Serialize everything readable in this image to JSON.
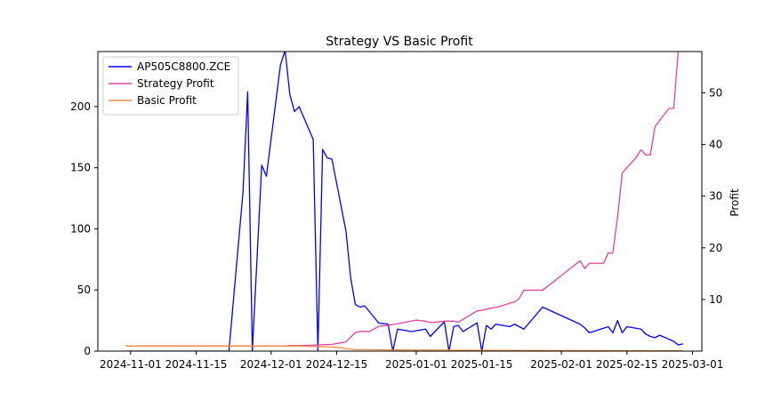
{
  "chart_data": {
    "type": "line",
    "title": "Strategy VS Basic Profit",
    "xlabel": "",
    "ylabel_left": "",
    "ylabel_right": "Profit",
    "x_axis": {
      "type": "date",
      "range": [
        "2024-10-25",
        "2025-03-03"
      ],
      "ticks": [
        "2024-11-01",
        "2024-11-15",
        "2024-12-01",
        "2024-12-15",
        "2025-01-01",
        "2025-01-15",
        "2025-02-01",
        "2025-02-15",
        "2025-03-01"
      ]
    },
    "y_left": {
      "range": [
        0,
        245
      ],
      "ticks": [
        0,
        50,
        100,
        150,
        200
      ]
    },
    "y_right": {
      "range": [
        0,
        58
      ],
      "ticks": [
        10,
        20,
        30,
        40,
        50
      ]
    },
    "grid": false,
    "legend": {
      "placement": "top-left"
    },
    "series": [
      {
        "name": "AP505C8800.ZCE",
        "axis": "left",
        "color": "#0000ff",
        "points": [
          [
            "2024-10-31",
            0
          ],
          [
            "2024-11-22",
            0
          ],
          [
            "2024-11-25",
            130
          ],
          [
            "2024-11-26",
            212
          ],
          [
            "2024-11-27",
            0
          ],
          [
            "2024-11-29",
            152
          ],
          [
            "2024-11-30",
            143
          ],
          [
            "2024-12-03",
            234
          ],
          [
            "2024-12-04",
            246
          ],
          [
            "2024-12-05",
            210
          ],
          [
            "2024-12-06",
            196
          ],
          [
            "2024-12-07",
            200
          ],
          [
            "2024-12-10",
            173
          ],
          [
            "2024-12-11",
            0
          ],
          [
            "2024-12-12",
            165
          ],
          [
            "2024-12-13",
            158
          ],
          [
            "2024-12-14",
            157
          ],
          [
            "2024-12-17",
            98
          ],
          [
            "2024-12-18",
            60
          ],
          [
            "2024-12-19",
            38
          ],
          [
            "2024-12-20",
            36
          ],
          [
            "2024-12-21",
            37
          ],
          [
            "2024-12-24",
            23
          ],
          [
            "2024-12-26",
            22
          ],
          [
            "2024-12-27",
            0
          ],
          [
            "2024-12-28",
            18
          ],
          [
            "2024-12-31",
            16
          ],
          [
            "2025-01-03",
            18
          ],
          [
            "2025-01-04",
            12
          ],
          [
            "2025-01-07",
            24
          ],
          [
            "2025-01-08",
            0
          ],
          [
            "2025-01-09",
            20
          ],
          [
            "2025-01-10",
            21
          ],
          [
            "2025-01-11",
            16
          ],
          [
            "2025-01-14",
            23
          ],
          [
            "2025-01-15",
            0
          ],
          [
            "2025-01-16",
            21
          ],
          [
            "2025-01-17",
            18
          ],
          [
            "2025-01-18",
            22
          ],
          [
            "2025-01-21",
            20
          ],
          [
            "2025-01-22",
            22
          ],
          [
            "2025-01-24",
            18
          ],
          [
            "2025-01-28",
            36
          ],
          [
            "2025-02-05",
            22
          ],
          [
            "2025-02-06",
            19
          ],
          [
            "2025-02-07",
            15
          ],
          [
            "2025-02-11",
            20
          ],
          [
            "2025-02-12",
            15
          ],
          [
            "2025-02-13",
            25
          ],
          [
            "2025-02-14",
            15
          ],
          [
            "2025-02-15",
            20
          ],
          [
            "2025-02-18",
            18
          ],
          [
            "2025-02-19",
            14
          ],
          [
            "2025-02-20",
            12
          ],
          [
            "2025-02-21",
            11
          ],
          [
            "2025-02-22",
            13
          ],
          [
            "2025-02-25",
            8
          ],
          [
            "2025-02-26",
            5
          ],
          [
            "2025-02-27",
            6
          ]
        ]
      },
      {
        "name": "Strategy Profit",
        "axis": "right",
        "color": "#e8409f",
        "points": [
          [
            "2024-10-31",
            1.0
          ],
          [
            "2024-11-28",
            1.0
          ],
          [
            "2024-12-04",
            1.0
          ],
          [
            "2024-12-05",
            1.1
          ],
          [
            "2024-12-08",
            1.1
          ],
          [
            "2024-12-11",
            1.2
          ],
          [
            "2024-12-14",
            1.3
          ],
          [
            "2024-12-17",
            1.8
          ],
          [
            "2024-12-19",
            3.6
          ],
          [
            "2024-12-20",
            3.8
          ],
          [
            "2024-12-22",
            3.8
          ],
          [
            "2024-12-24",
            4.8
          ],
          [
            "2024-12-26",
            5.0
          ],
          [
            "2024-12-28",
            5.3
          ],
          [
            "2025-01-01",
            6.0
          ],
          [
            "2025-01-03",
            5.8
          ],
          [
            "2025-01-04",
            5.5
          ],
          [
            "2025-01-07",
            5.8
          ],
          [
            "2025-01-09",
            5.8
          ],
          [
            "2025-01-10",
            5.6
          ],
          [
            "2025-01-14",
            7.8
          ],
          [
            "2025-01-15",
            7.9
          ],
          [
            "2025-01-16",
            8.1
          ],
          [
            "2025-01-18",
            8.5
          ],
          [
            "2025-01-19",
            8.7
          ],
          [
            "2025-01-20",
            9.0
          ],
          [
            "2025-01-21",
            9.3
          ],
          [
            "2025-01-22",
            9.5
          ],
          [
            "2025-01-23",
            10.2
          ],
          [
            "2025-01-24",
            11.8
          ],
          [
            "2025-01-28",
            11.8
          ],
          [
            "2025-02-05",
            17.5
          ],
          [
            "2025-02-06",
            16.0
          ],
          [
            "2025-02-07",
            17.0
          ],
          [
            "2025-02-10",
            17.0
          ],
          [
            "2025-02-11",
            19.0
          ],
          [
            "2025-02-12",
            19.0
          ],
          [
            "2025-02-13",
            26.0
          ],
          [
            "2025-02-14",
            34.5
          ],
          [
            "2025-02-17",
            37.5
          ],
          [
            "2025-02-18",
            39.0
          ],
          [
            "2025-02-19",
            38.0
          ],
          [
            "2025-02-20",
            38.0
          ],
          [
            "2025-02-21",
            43.5
          ],
          [
            "2025-02-24",
            47.0
          ],
          [
            "2025-02-25",
            47.0
          ],
          [
            "2025-02-26",
            58.5
          ]
        ]
      },
      {
        "name": "Basic Profit",
        "axis": "right",
        "color": "#f08a42",
        "points": [
          [
            "2024-10-31",
            1.0
          ],
          [
            "2024-12-07",
            1.0
          ],
          [
            "2024-12-14",
            0.8
          ],
          [
            "2024-12-17",
            0.5
          ],
          [
            "2024-12-19",
            0.3
          ],
          [
            "2025-01-01",
            0.2
          ],
          [
            "2025-02-01",
            0.1
          ],
          [
            "2025-02-27",
            0.05
          ]
        ]
      }
    ]
  }
}
